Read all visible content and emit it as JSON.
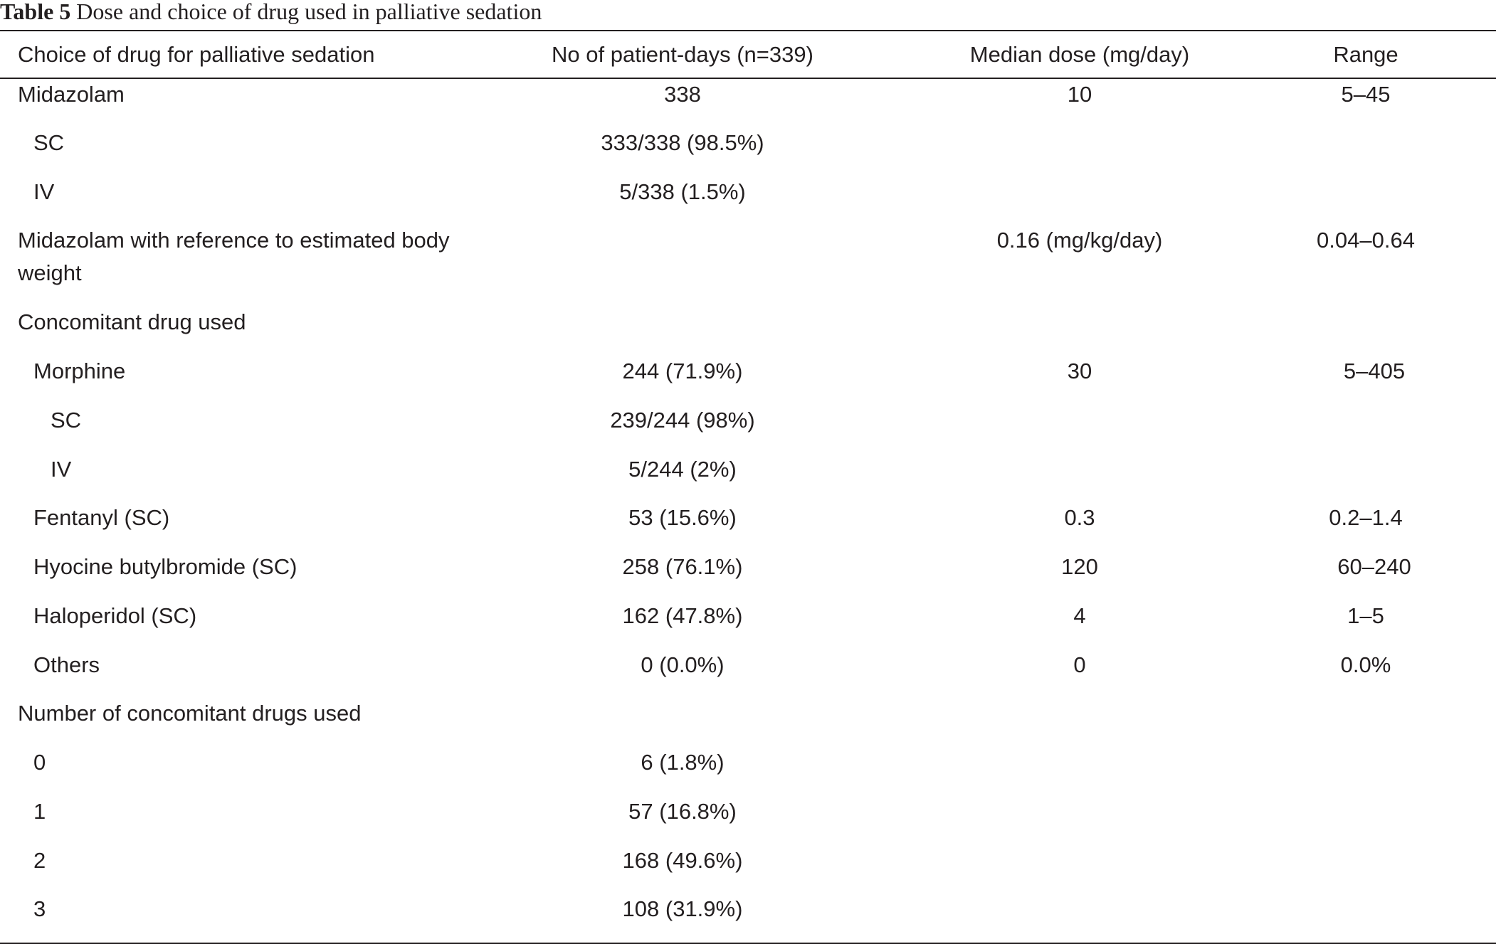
{
  "caption": {
    "label": "Table 5",
    "text": "Dose and choice of drug used in palliative sedation"
  },
  "headers": {
    "drug": "Choice of drug for palliative sedation",
    "patient_days": "No of patient-days (n=339)",
    "median_dose": "Median dose (mg/day)",
    "range": "Range"
  },
  "rows": [
    {
      "drug": "Midazolam",
      "patient_days": "338",
      "median_dose": "10",
      "range": "5–45"
    },
    {
      "drug": "SC",
      "patient_days": "333/338 (98.5%)",
      "median_dose": "",
      "range": ""
    },
    {
      "drug": "IV",
      "patient_days": "5/338 (1.5%)",
      "median_dose": "",
      "range": ""
    },
    {
      "drug": "Midazolam with reference to estimated body weight",
      "patient_days": "",
      "median_dose": "0.16 (mg/kg/day)",
      "range": "0.04–0.64"
    },
    {
      "drug": "Concomitant drug used",
      "patient_days": "",
      "median_dose": "",
      "range": ""
    },
    {
      "drug": "Morphine",
      "patient_days": "244 (71.9%)",
      "median_dose": "30",
      "range": "5–405"
    },
    {
      "drug": "SC",
      "patient_days": "239/244 (98%)",
      "median_dose": "",
      "range": ""
    },
    {
      "drug": "IV",
      "patient_days": "5/244 (2%)",
      "median_dose": "",
      "range": ""
    },
    {
      "drug": "Fentanyl (SC)",
      "patient_days": "53 (15.6%)",
      "median_dose": "0.3",
      "range": "0.2–1.4"
    },
    {
      "drug": "Hyocine butylbromide (SC)",
      "patient_days": "258 (76.1%)",
      "median_dose": "120",
      "range": "60–240"
    },
    {
      "drug": "Haloperidol (SC)",
      "patient_days": "162 (47.8%)",
      "median_dose": "4",
      "range": "1–5"
    },
    {
      "drug": "Others",
      "patient_days": "0 (0.0%)",
      "median_dose": "0",
      "range": "0.0%"
    },
    {
      "drug": "Number of concomitant drugs used",
      "patient_days": "",
      "median_dose": "",
      "range": ""
    },
    {
      "drug": "0",
      "patient_days": "6 (1.8%)",
      "median_dose": "",
      "range": ""
    },
    {
      "drug": "1",
      "patient_days": "57 (16.8%)",
      "median_dose": "",
      "range": ""
    },
    {
      "drug": "2",
      "patient_days": "168 (49.6%)",
      "median_dose": "",
      "range": ""
    },
    {
      "drug": "3",
      "patient_days": "108 (31.9%)",
      "median_dose": "",
      "range": ""
    }
  ]
}
